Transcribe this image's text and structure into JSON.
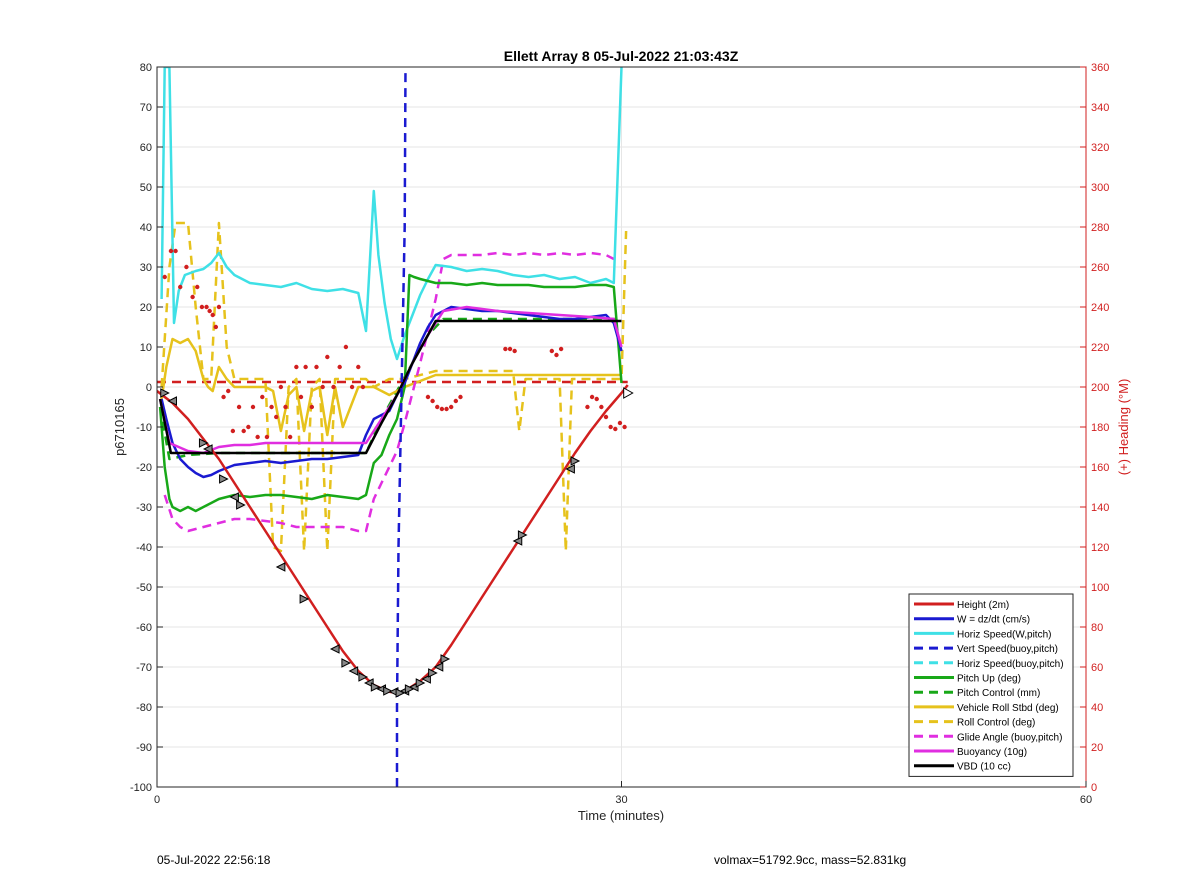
{
  "chart_data": {
    "type": "line",
    "title": "Ellett Array 8 05-Jul-2022 21:03:43Z",
    "xlabel": "Time (minutes)",
    "ylabel": "p6710165",
    "y2label": "(+) Heading (°M)",
    "xlim": [
      0,
      60
    ],
    "ylim": [
      -100,
      80
    ],
    "y2lim": [
      0,
      360
    ],
    "xticks": [
      0,
      30,
      60
    ],
    "yticks": [
      -100,
      -90,
      -80,
      -70,
      -60,
      -50,
      -40,
      -30,
      -20,
      -10,
      0,
      10,
      20,
      30,
      40,
      50,
      60,
      70,
      80
    ],
    "y2ticks": [
      0,
      20,
      40,
      60,
      80,
      100,
      120,
      140,
      160,
      180,
      200,
      220,
      240,
      260,
      280,
      300,
      320,
      340,
      360
    ],
    "grid": true,
    "legend_position": "bottom-right",
    "colors": {
      "red": "#d11f1f",
      "blue": "#1a1ad1",
      "cyan": "#3fe0e6",
      "green": "#18a818",
      "yellow": "#e6c21c",
      "magenta": "#e02ee0",
      "black": "#000000",
      "heading": "#d11f1f"
    },
    "series": [
      {
        "name": "Height (2m)",
        "color": "#d11f1f",
        "style": "solid",
        "x": [
          0,
          1,
          2,
          3,
          4,
          5,
          6,
          7,
          8,
          9,
          10,
          11,
          12,
          13,
          14,
          15,
          15.5,
          16,
          17,
          18,
          19,
          20,
          21,
          22,
          23,
          24,
          25,
          26,
          27,
          28,
          29,
          30,
          30.4
        ],
        "y": [
          -1,
          -4,
          -8,
          -13,
          -18,
          -24,
          -30,
          -36,
          -42,
          -48,
          -54,
          -60,
          -66,
          -71,
          -74.5,
          -76.2,
          -76.5,
          -76,
          -73.5,
          -70,
          -64.5,
          -58.5,
          -52.5,
          -46.5,
          -40.5,
          -34.5,
          -28.5,
          -22.5,
          -16.5,
          -11,
          -6,
          -1.5,
          0.5
        ]
      },
      {
        "name": "W = dz/dt (cm/s)",
        "color": "#1a1ad1",
        "style": "solid",
        "x": [
          0.3,
          0.6,
          1,
          1.5,
          2,
          2.5,
          3,
          3.5,
          4,
          5,
          6,
          7,
          8,
          9,
          10,
          11,
          12,
          13,
          13.5,
          14,
          14.5,
          15,
          15.5,
          16,
          16.5,
          17,
          17.5,
          18,
          19,
          20,
          21,
          22,
          23,
          24,
          25,
          26,
          27,
          28,
          29,
          29.5,
          30
        ],
        "y": [
          -3,
          -8,
          -14,
          -18,
          -20,
          -21.5,
          -22.5,
          -22,
          -21,
          -19.5,
          -19,
          -18.5,
          -19,
          -18.5,
          -18,
          -18,
          -17.5,
          -17,
          -12,
          -8,
          -7,
          -6,
          -2,
          1,
          6,
          11,
          15,
          18,
          20,
          19.5,
          19,
          19,
          18.5,
          18,
          17.5,
          17,
          17,
          17.5,
          18,
          16,
          9
        ]
      },
      {
        "name": "Horiz Speed(W,pitch)",
        "color": "#3fe0e6",
        "style": "solid",
        "x": [
          0.3,
          0.5,
          0.8,
          1.1,
          1.4,
          1.8,
          2.5,
          3,
          3.5,
          4,
          4.5,
          5,
          6,
          7,
          8,
          9,
          10,
          11,
          12,
          13,
          13.5,
          14,
          14.3,
          14.7,
          15.1,
          15.5,
          16,
          16.5,
          17,
          17.5,
          18,
          19,
          20,
          21,
          22,
          23,
          24,
          25,
          26,
          27,
          28,
          29,
          29.5,
          30
        ],
        "y": [
          22,
          80,
          80,
          16,
          24,
          28,
          29,
          29.5,
          31,
          33.5,
          30,
          28,
          26,
          25.5,
          25,
          26,
          24.5,
          24,
          24.5,
          23.5,
          14,
          49,
          33,
          21,
          12,
          7,
          13,
          18,
          23,
          27,
          30.5,
          30,
          29,
          29.5,
          29,
          28,
          27.5,
          28,
          27,
          27.5,
          26,
          27,
          26,
          80
        ]
      },
      {
        "name": "Vert Speed(buoy,pitch)",
        "color": "#1a1ad1",
        "style": "dashed",
        "x": [
          15.5,
          15.5,
          15.6,
          15.8,
          16.0,
          16.05
        ],
        "y": [
          -100,
          -80,
          -40,
          0,
          40,
          80
        ]
      },
      {
        "name": "Horiz Speed(buoy,pitch)",
        "color": "#3fe0e6",
        "style": "dashed",
        "x": [],
        "y": []
      },
      {
        "name": "Pitch Up (deg)",
        "color": "#18a818",
        "style": "solid",
        "x": [
          0.2,
          0.5,
          0.8,
          1,
          1.5,
          2,
          2.5,
          3,
          3.5,
          4,
          5,
          6,
          7,
          8,
          9,
          10,
          11,
          12,
          13,
          13.5,
          14,
          14.5,
          15,
          15.5,
          16,
          16.3,
          16.6,
          17,
          18,
          19,
          20,
          21,
          22,
          23,
          24,
          25,
          26,
          27,
          28,
          29,
          29.5,
          30
        ],
        "y": [
          -5,
          -20,
          -28,
          -30,
          -31,
          -30,
          -31,
          -30,
          -29,
          -28,
          -27,
          -27.5,
          -27,
          -27,
          -27.5,
          -28,
          -27,
          -27.5,
          -28,
          -27,
          -19,
          -17,
          -12,
          -8,
          0,
          28,
          27.5,
          27,
          26,
          26,
          25.5,
          26,
          25.5,
          25.5,
          25.5,
          25,
          25,
          25,
          25.5,
          25.5,
          25,
          1
        ]
      },
      {
        "name": "Pitch Control (mm)",
        "color": "#18a818",
        "style": "dashed",
        "x": [
          0.2,
          0.8,
          2,
          4,
          6,
          8,
          10,
          12,
          13.5,
          14.5,
          15.5,
          16.5,
          17.5,
          18.5,
          20,
          22,
          24,
          26,
          28,
          30
        ],
        "y": [
          -5,
          -18,
          -17,
          -16.5,
          -16.5,
          -16.5,
          -16.5,
          -16.5,
          -16.5,
          -8,
          -1,
          6,
          13,
          17,
          17,
          17,
          17,
          17,
          17,
          17
        ]
      },
      {
        "name": "Vehicle Roll Stbd (deg)",
        "color": "#e6c21c",
        "style": "solid",
        "x": [
          0.3,
          0.6,
          1,
          1.5,
          2,
          2.5,
          3,
          3.3,
          3.6,
          4,
          4.5,
          5,
          6,
          7,
          7.5,
          8,
          8.5,
          9,
          9.5,
          10,
          10.5,
          11,
          11.5,
          12,
          13,
          14,
          15,
          16,
          18,
          20,
          22,
          24,
          26,
          28,
          30
        ],
        "y": [
          -3,
          5,
          12,
          11,
          12,
          9,
          2,
          0,
          -1,
          5,
          2,
          0,
          0,
          0,
          -1,
          -11,
          -2,
          0,
          -11,
          -1,
          0,
          -12,
          0,
          -10,
          0,
          0,
          -2,
          0,
          3,
          3,
          3,
          3,
          3,
          3,
          3
        ]
      },
      {
        "name": "Roll Control (deg)",
        "color": "#e6c21c",
        "style": "dashed",
        "x": [
          0.3,
          0.8,
          1.2,
          2,
          2.5,
          3,
          3.5,
          4,
          4.5,
          5,
          6,
          7,
          7.5,
          8,
          8.5,
          9,
          9.5,
          10,
          10.5,
          11,
          11.5,
          12,
          12.5,
          13,
          13.5,
          14,
          15,
          16,
          18,
          20,
          22,
          23,
          23.4,
          23.8,
          26,
          26.4,
          26.8,
          27.2,
          28,
          29,
          30,
          30.3
        ],
        "y": [
          0,
          30,
          41,
          41,
          20,
          2,
          2,
          41,
          10,
          2,
          2,
          2,
          -40,
          -41,
          0,
          2,
          -41,
          0,
          2,
          -41,
          2,
          2,
          2,
          2,
          2,
          0,
          2,
          2,
          4,
          4,
          4,
          4,
          -11,
          2,
          2,
          -41,
          2,
          2,
          2,
          2,
          2,
          39
        ]
      },
      {
        "name": "Glide Angle (buoy,pitch)",
        "color": "#e02ee0",
        "style": "dashed",
        "x": [
          0.5,
          1,
          1.5,
          2,
          3,
          4,
          5,
          6,
          7,
          8,
          9,
          10,
          11,
          12,
          13,
          13.5,
          14,
          14.5,
          15,
          15.5,
          16,
          17,
          18,
          18.5,
          19,
          20,
          21,
          22,
          23,
          24,
          25,
          26,
          27,
          28,
          29,
          29.5
        ],
        "y": [
          -27,
          -33,
          -35,
          -36,
          -35,
          -34,
          -33,
          -33,
          -33.5,
          -34,
          -35,
          -35,
          -35,
          -35,
          -36,
          -36,
          -28,
          -24,
          -20,
          -16,
          -9,
          6,
          22,
          32,
          33,
          33,
          33,
          33.5,
          33,
          33.5,
          33,
          33.5,
          33,
          33.5,
          33,
          32
        ]
      },
      {
        "name": "Buoyancy (10g)",
        "color": "#e02ee0",
        "style": "solid",
        "x": [
          0.2,
          0.8,
          2,
          3,
          4,
          5,
          6,
          7,
          8,
          9,
          10,
          11,
          12,
          13,
          13.5,
          14.5,
          15.5,
          16.5,
          17.5,
          18.5,
          20,
          22,
          24,
          26,
          28,
          29.5,
          30
        ],
        "y": [
          -3,
          -14,
          -16,
          -16.5,
          -15,
          -14.5,
          -14.5,
          -14,
          -14,
          -14,
          -14,
          -14,
          -14,
          -14,
          -14,
          -8,
          -2,
          6,
          13,
          19,
          20,
          19,
          18.5,
          18,
          17.5,
          17,
          10
        ]
      },
      {
        "name": "VBD (10 cc)",
        "color": "#000000",
        "style": "solid",
        "x": [
          0.2,
          0.9,
          2,
          4,
          6,
          8,
          10,
          12,
          13.5,
          14.5,
          15.5,
          16.5,
          17.5,
          18,
          19,
          20,
          22,
          24,
          26,
          28,
          30
        ],
        "y": [
          -3,
          -16.5,
          -16.5,
          -16.5,
          -16.5,
          -16.5,
          -16.5,
          -16.5,
          -16.5,
          -9,
          -2,
          6,
          13,
          16.5,
          16.5,
          16.5,
          16.5,
          16.5,
          16.5,
          16.5,
          16.5
        ]
      }
    ],
    "heading_reference": {
      "value": 202.5,
      "axis": "right",
      "x": [
        0,
        30.4
      ],
      "color": "#d11f1f",
      "style": "dashed"
    },
    "heading_points": {
      "axis": "right",
      "color": "#d11f1f",
      "x": [
        0.5,
        0.9,
        1.2,
        1.5,
        1.9,
        2.3,
        2.6,
        2.9,
        3.2,
        3.4,
        3.6,
        3.8,
        4,
        4.3,
        4.6,
        4.9,
        5.3,
        5.6,
        5.9,
        6.2,
        6.5,
        6.8,
        7.1,
        7.4,
        7.7,
        8.0,
        8.3,
        8.6,
        9.0,
        9.3,
        9.6,
        10,
        10.3,
        10.7,
        11,
        11.4,
        11.8,
        12.2,
        12.6,
        13,
        13.3,
        17.5,
        17.8,
        18.1,
        18.4,
        18.7,
        19,
        19.3,
        19.6,
        22.5,
        22.8,
        23.1,
        25.5,
        25.8,
        26.1,
        27.8,
        28.1,
        28.4,
        28.7,
        29.0,
        29.3,
        29.6,
        29.9,
        30.2
      ],
      "y": [
        255,
        268,
        268,
        250,
        260,
        245,
        250,
        240,
        240,
        238,
        236,
        230,
        240,
        195,
        198,
        178,
        190,
        178,
        180,
        190,
        175,
        195,
        175,
        190,
        185,
        200,
        190,
        175,
        210,
        195,
        210,
        190,
        210,
        200,
        215,
        200,
        210,
        220,
        200,
        210,
        200,
        195,
        193,
        190,
        189,
        189,
        190,
        193,
        195,
        219,
        219,
        218,
        218,
        216,
        219,
        190,
        195,
        194,
        190,
        185,
        180,
        179,
        182,
        180
      ]
    },
    "height_markers": {
      "x": [
        0.5,
        1,
        3,
        3.3,
        4.3,
        5,
        5.4,
        8,
        9.5,
        11.5,
        12.2,
        12.7,
        13.3,
        13.7,
        14.1,
        14.5,
        14.9,
        15.3,
        15.7,
        16,
        16.3,
        16.6,
        17,
        17.4,
        17.8,
        18.2,
        18.6,
        23.3,
        23.6,
        26.7,
        27
      ],
      "y": [
        -1.5,
        -3.5,
        -14,
        -15.5,
        -23,
        -27.5,
        -29.5,
        -45,
        -53,
        -65.5,
        -69,
        -71,
        -72.5,
        -74,
        -75,
        -75.5,
        -76,
        -76.2,
        -76.5,
        -76,
        -75.5,
        -75,
        -74,
        -73,
        -71.5,
        -70,
        -68,
        -38.5,
        -37,
        -20.5,
        -18.5
      ]
    },
    "end_marker": {
      "x": [
        30.4
      ],
      "y": [
        -1.5
      ]
    }
  },
  "footer": {
    "timestamp": "05-Jul-2022 22:56:18",
    "summary": "volmax=51792.9cc, mass=52.831kg"
  }
}
